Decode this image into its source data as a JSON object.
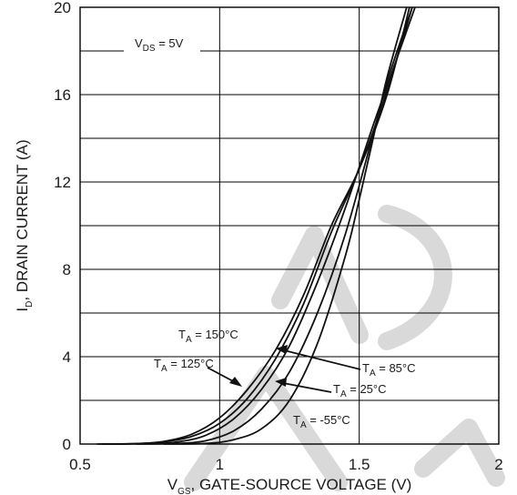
{
  "chart_data": {
    "type": "line",
    "title": "",
    "xlabel": "V, GATE-SOURCE VOLTAGE (V)",
    "xlabel_parts": {
      "main": "V",
      "sub": "GS",
      "rest": ", GATE-SOURCE VOLTAGE (V)"
    },
    "ylabel": "I, DRAIN CURRENT (A)",
    "ylabel_parts": {
      "main": "I",
      "sub": "D",
      "rest": ", DRAIN CURRENT (A)"
    },
    "xlim": [
      0.5,
      2
    ],
    "ylim": [
      0,
      20
    ],
    "x_ticks": [
      0.5,
      1,
      1.5,
      2
    ],
    "x_tick_labels": [
      "0.5",
      "1",
      "1.5",
      "2"
    ],
    "y_ticks": [
      0,
      4,
      8,
      12,
      16,
      20
    ],
    "y_tick_labels": [
      "0",
      "4",
      "8",
      "12",
      "16",
      "20"
    ],
    "grid": true,
    "condition": {
      "main": "V",
      "sub": "DS",
      "rest": " = 5V"
    },
    "series": [
      {
        "name": "T_A = 150°C",
        "label_parts": {
          "main": "T",
          "sub": "A",
          "rest": " = 150°C"
        },
        "points": [
          [
            0.56,
            0
          ],
          [
            0.7,
            0.02
          ],
          [
            0.8,
            0.12
          ],
          [
            0.9,
            0.45
          ],
          [
            1.0,
            1.2
          ],
          [
            1.1,
            2.5
          ],
          [
            1.2,
            4.3
          ],
          [
            1.3,
            6.8
          ],
          [
            1.4,
            10.0
          ],
          [
            1.5,
            12.6
          ],
          [
            1.6,
            16.0
          ],
          [
            1.68,
            20.0
          ]
        ]
      },
      {
        "name": "T_A = 125°C",
        "label_parts": {
          "main": "T",
          "sub": "A",
          "rest": " = 125°C"
        },
        "points": [
          [
            0.58,
            0
          ],
          [
            0.7,
            0.02
          ],
          [
            0.8,
            0.1
          ],
          [
            0.9,
            0.35
          ],
          [
            1.0,
            0.95
          ],
          [
            1.1,
            2.1
          ],
          [
            1.2,
            3.9
          ],
          [
            1.3,
            6.4
          ],
          [
            1.4,
            9.7
          ],
          [
            1.5,
            12.6
          ],
          [
            1.6,
            16.2
          ],
          [
            1.69,
            20.0
          ]
        ]
      },
      {
        "name": "T_A = 85°C",
        "label_parts": {
          "main": "T",
          "sub": "A",
          "rest": " = 85°C"
        },
        "points": [
          [
            0.62,
            0
          ],
          [
            0.75,
            0.02
          ],
          [
            0.85,
            0.1
          ],
          [
            0.95,
            0.4
          ],
          [
            1.05,
            1.15
          ],
          [
            1.15,
            2.5
          ],
          [
            1.25,
            4.5
          ],
          [
            1.35,
            7.4
          ],
          [
            1.45,
            10.8
          ],
          [
            1.55,
            14.6
          ],
          [
            1.6,
            16.4
          ],
          [
            1.7,
            20.0
          ]
        ]
      },
      {
        "name": "T_A = 25°C",
        "label_parts": {
          "main": "T",
          "sub": "A",
          "rest": " = 25°C"
        },
        "points": [
          [
            0.7,
            0
          ],
          [
            0.85,
            0.03
          ],
          [
            0.95,
            0.15
          ],
          [
            1.05,
            0.6
          ],
          [
            1.15,
            1.6
          ],
          [
            1.25,
            3.3
          ],
          [
            1.35,
            6.0
          ],
          [
            1.45,
            9.6
          ],
          [
            1.55,
            14.2
          ],
          [
            1.6,
            16.6
          ],
          [
            1.69,
            20.0
          ]
        ]
      },
      {
        "name": "T_A = -55°C",
        "label_parts": {
          "main": "T",
          "sub": "A",
          "rest": " = -55°C"
        },
        "points": [
          [
            0.8,
            0
          ],
          [
            0.95,
            0.03
          ],
          [
            1.05,
            0.2
          ],
          [
            1.15,
            0.7
          ],
          [
            1.25,
            2.0
          ],
          [
            1.35,
            4.6
          ],
          [
            1.45,
            8.6
          ],
          [
            1.5,
            11.2
          ],
          [
            1.55,
            14.0
          ],
          [
            1.6,
            16.8
          ],
          [
            1.67,
            20.0
          ]
        ]
      }
    ]
  }
}
